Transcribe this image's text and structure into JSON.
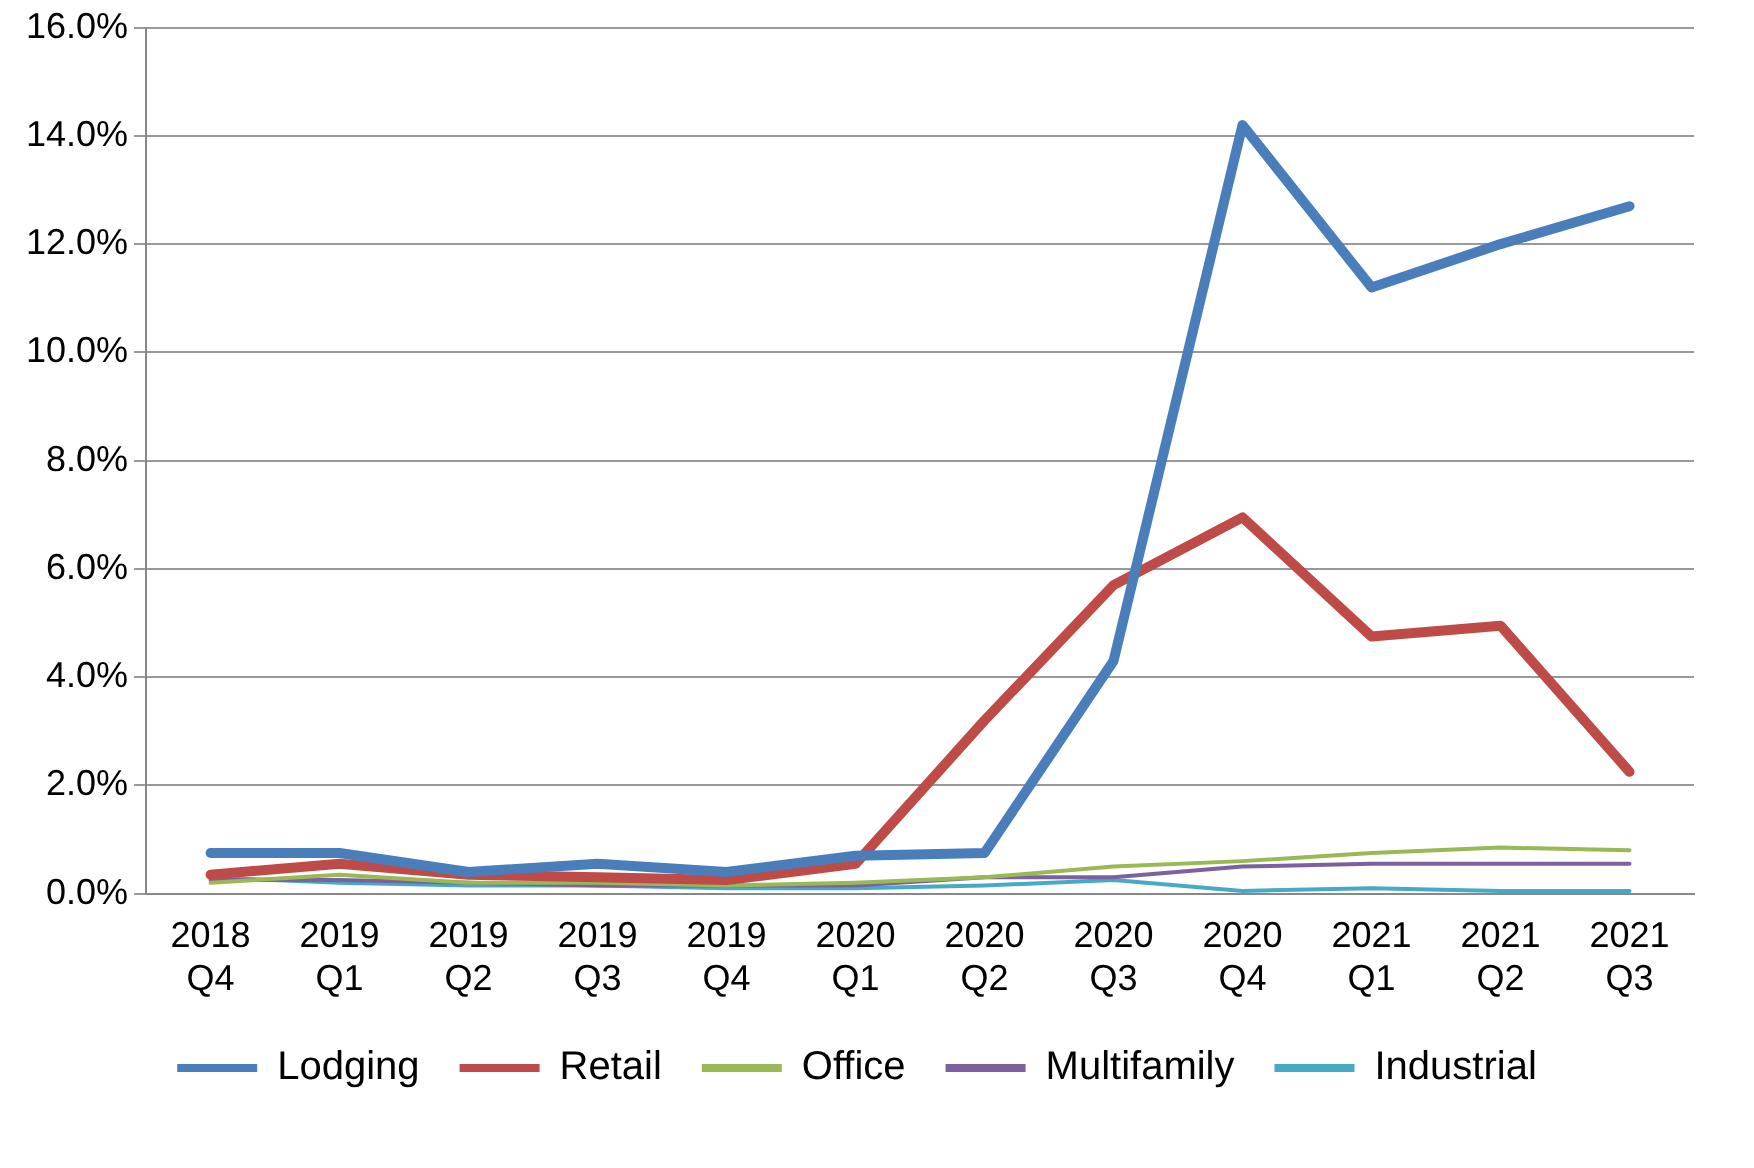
{
  "chart_data": {
    "type": "line",
    "categories": [
      "2018 Q4",
      "2019 Q1",
      "2019 Q2",
      "2019 Q3",
      "2019 Q4",
      "2020 Q1",
      "2020 Q2",
      "2020 Q3",
      "2020 Q4",
      "2021 Q1",
      "2021 Q2",
      "2021 Q3"
    ],
    "series": [
      {
        "name": "Lodging",
        "color": "#4a7ebb",
        "values": [
          0.75,
          0.75,
          0.4,
          0.55,
          0.4,
          0.7,
          0.75,
          4.3,
          14.2,
          11.2,
          12.0,
          12.7
        ]
      },
      {
        "name": "Retail",
        "color": "#be4b48",
        "values": [
          0.35,
          0.55,
          0.35,
          0.3,
          0.25,
          0.55,
          3.2,
          5.7,
          6.95,
          4.75,
          4.95,
          2.25
        ]
      },
      {
        "name": "Office",
        "color": "#98b954",
        "values": [
          0.2,
          0.35,
          0.2,
          0.2,
          0.15,
          0.2,
          0.3,
          0.5,
          0.6,
          0.75,
          0.85,
          0.8
        ]
      },
      {
        "name": "Multifamily",
        "color": "#7d60a0",
        "values": [
          0.25,
          0.25,
          0.2,
          0.15,
          0.15,
          0.15,
          0.3,
          0.3,
          0.5,
          0.55,
          0.55,
          0.55
        ]
      },
      {
        "name": "Industrial",
        "color": "#46aac5",
        "values": [
          0.3,
          0.2,
          0.15,
          0.15,
          0.1,
          0.1,
          0.15,
          0.25,
          0.05,
          0.1,
          0.05,
          0.05
        ]
      }
    ],
    "ylim": [
      0,
      16
    ],
    "yticks": [
      {
        "value": 0,
        "label": "0.0%"
      },
      {
        "value": 2,
        "label": "2.0%"
      },
      {
        "value": 4,
        "label": "4.0%"
      },
      {
        "value": 6,
        "label": "6.0%"
      },
      {
        "value": 8,
        "label": "8.0%"
      },
      {
        "value": 10,
        "label": "10.0%"
      },
      {
        "value": 12,
        "label": "12.0%"
      },
      {
        "value": 14,
        "label": "14.0%"
      },
      {
        "value": 16,
        "label": "16.0%"
      }
    ],
    "grid": "y",
    "legend": "bottom",
    "marker": "none",
    "line_style": "solid"
  }
}
